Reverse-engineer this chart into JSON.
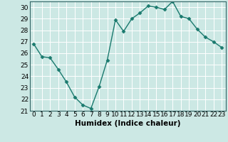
{
  "x": [
    0,
    1,
    2,
    3,
    4,
    5,
    6,
    7,
    8,
    9,
    10,
    11,
    12,
    13,
    14,
    15,
    16,
    17,
    18,
    19,
    20,
    21,
    22,
    23
  ],
  "y": [
    26.8,
    25.7,
    25.6,
    24.6,
    23.5,
    22.2,
    21.5,
    21.2,
    23.1,
    25.4,
    28.9,
    27.9,
    29.0,
    29.5,
    30.1,
    30.0,
    29.8,
    30.5,
    29.2,
    29.0,
    28.1,
    27.4,
    27.0,
    26.5
  ],
  "line_color": "#1a7a6e",
  "marker": "D",
  "markersize": 2.5,
  "linewidth": 1.0,
  "xlabel": "Humidex (Indice chaleur)",
  "xlim": [
    -0.5,
    23.5
  ],
  "ylim": [
    21,
    30.5
  ],
  "yticks": [
    21,
    22,
    23,
    24,
    25,
    26,
    27,
    28,
    29,
    30
  ],
  "xticks": [
    0,
    1,
    2,
    3,
    4,
    5,
    6,
    7,
    8,
    9,
    10,
    11,
    12,
    13,
    14,
    15,
    16,
    17,
    18,
    19,
    20,
    21,
    22,
    23
  ],
  "bg_color": "#cce8e4",
  "grid_color": "#ffffff",
  "xlabel_fontsize": 7.5,
  "tick_fontsize": 6.5,
  "spine_color": "#336666"
}
